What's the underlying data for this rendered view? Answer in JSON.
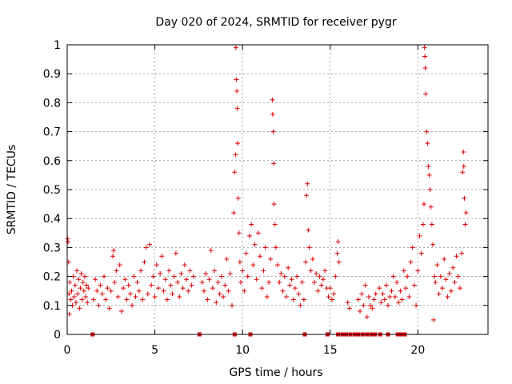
{
  "chart_data": {
    "type": "scatter",
    "title": "Day 020 of 2024, SRMTID for receiver pygr",
    "xlabel": "GPS time / hours",
    "ylabel": "SRMTID / TECUs",
    "xlim": [
      0,
      24
    ],
    "ylim": [
      0,
      1
    ],
    "x_ticks": [
      0,
      5,
      10,
      15,
      20
    ],
    "x_tick_labels": [
      "0",
      "5",
      "10",
      "15",
      "20"
    ],
    "y_ticks": [
      0,
      0.1,
      0.2,
      0.3,
      0.4,
      0.5,
      0.6,
      0.7,
      0.8,
      0.9,
      1
    ],
    "y_tick_labels": [
      "0",
      "0.1",
      "0.2",
      "0.3",
      "0.4",
      "0.5",
      "0.6",
      "0.7",
      "0.8",
      "0.9",
      "1"
    ],
    "grid": true,
    "marker": "+",
    "color": "#dd0000",
    "baseline_marker": "square",
    "series": [
      {
        "name": "SRMTID",
        "points": [
          [
            0.02,
            0.33
          ],
          [
            0.05,
            0.32
          ],
          [
            0.08,
            0.25
          ],
          [
            0.1,
            0.14
          ],
          [
            0.12,
            0.07
          ],
          [
            0.15,
            0.18
          ],
          [
            0.2,
            0.12
          ],
          [
            0.25,
            0.15
          ],
          [
            0.3,
            0.1
          ],
          [
            0.35,
            0.2
          ],
          [
            0.4,
            0.13
          ],
          [
            0.45,
            0.17
          ],
          [
            0.5,
            0.11
          ],
          [
            0.55,
            0.22
          ],
          [
            0.6,
            0.14
          ],
          [
            0.65,
            0.19
          ],
          [
            0.7,
            0.09
          ],
          [
            0.75,
            0.16
          ],
          [
            0.8,
            0.21
          ],
          [
            0.85,
            0.12
          ],
          [
            0.9,
            0.18
          ],
          [
            0.95,
            0.15
          ],
          [
            1.0,
            0.2
          ],
          [
            1.05,
            0.13
          ],
          [
            1.1,
            0.17
          ],
          [
            1.15,
            0.11
          ],
          [
            1.2,
            0.16
          ],
          [
            1.5,
            0.12
          ],
          [
            1.6,
            0.19
          ],
          [
            1.7,
            0.15
          ],
          [
            1.8,
            0.1
          ],
          [
            1.9,
            0.17
          ],
          [
            2.0,
            0.14
          ],
          [
            2.1,
            0.2
          ],
          [
            2.2,
            0.12
          ],
          [
            2.3,
            0.16
          ],
          [
            2.4,
            0.09
          ],
          [
            2.5,
            0.15
          ],
          [
            2.6,
            0.27
          ],
          [
            2.65,
            0.29
          ],
          [
            2.7,
            0.18
          ],
          [
            2.8,
            0.22
          ],
          [
            2.9,
            0.13
          ],
          [
            3.0,
            0.24
          ],
          [
            3.1,
            0.08
          ],
          [
            3.2,
            0.16
          ],
          [
            3.3,
            0.19
          ],
          [
            3.4,
            0.12
          ],
          [
            3.5,
            0.17
          ],
          [
            3.6,
            0.14
          ],
          [
            3.7,
            0.1
          ],
          [
            3.8,
            0.2
          ],
          [
            3.9,
            0.13
          ],
          [
            4.0,
            0.18
          ],
          [
            4.1,
            0.15
          ],
          [
            4.2,
            0.22
          ],
          [
            4.3,
            0.12
          ],
          [
            4.4,
            0.25
          ],
          [
            4.5,
            0.3
          ],
          [
            4.6,
            0.14
          ],
          [
            4.7,
            0.31
          ],
          [
            4.8,
            0.17
          ],
          [
            4.9,
            0.2
          ],
          [
            5.0,
            0.13
          ],
          [
            5.1,
            0.24
          ],
          [
            5.2,
            0.16
          ],
          [
            5.3,
            0.21
          ],
          [
            5.4,
            0.27
          ],
          [
            5.5,
            0.15
          ],
          [
            5.6,
            0.19
          ],
          [
            5.7,
            0.12
          ],
          [
            5.8,
            0.22
          ],
          [
            5.9,
            0.17
          ],
          [
            6.0,
            0.14
          ],
          [
            6.1,
            0.2
          ],
          [
            6.2,
            0.28
          ],
          [
            6.3,
            0.18
          ],
          [
            6.4,
            0.13
          ],
          [
            6.5,
            0.21
          ],
          [
            6.6,
            0.16
          ],
          [
            6.7,
            0.24
          ],
          [
            6.8,
            0.19
          ],
          [
            6.9,
            0.15
          ],
          [
            7.0,
            0.22
          ],
          [
            7.1,
            0.17
          ],
          [
            7.2,
            0.2
          ],
          [
            7.7,
            0.18
          ],
          [
            7.8,
            0.15
          ],
          [
            7.9,
            0.21
          ],
          [
            8.0,
            0.12
          ],
          [
            8.1,
            0.19
          ],
          [
            8.2,
            0.29
          ],
          [
            8.3,
            0.16
          ],
          [
            8.4,
            0.22
          ],
          [
            8.5,
            0.11
          ],
          [
            8.6,
            0.18
          ],
          [
            8.7,
            0.14
          ],
          [
            8.8,
            0.2
          ],
          [
            8.9,
            0.13
          ],
          [
            9.0,
            0.17
          ],
          [
            9.1,
            0.26
          ],
          [
            9.2,
            0.15
          ],
          [
            9.3,
            0.21
          ],
          [
            9.4,
            0.1
          ],
          [
            9.5,
            0.42
          ],
          [
            9.55,
            0.56
          ],
          [
            9.6,
            0.62
          ],
          [
            9.62,
            0.99
          ],
          [
            9.65,
            0.88
          ],
          [
            9.68,
            0.84
          ],
          [
            9.7,
            0.78
          ],
          [
            9.72,
            0.66
          ],
          [
            9.75,
            0.47
          ],
          [
            9.8,
            0.35
          ],
          [
            9.85,
            0.25
          ],
          [
            9.9,
            0.18
          ],
          [
            10.0,
            0.22
          ],
          [
            10.1,
            0.15
          ],
          [
            10.2,
            0.28
          ],
          [
            10.3,
            0.2
          ],
          [
            10.4,
            0.34
          ],
          [
            10.5,
            0.38
          ],
          [
            10.6,
            0.24
          ],
          [
            10.7,
            0.31
          ],
          [
            10.8,
            0.19
          ],
          [
            10.9,
            0.35
          ],
          [
            11.0,
            0.27
          ],
          [
            11.1,
            0.16
          ],
          [
            11.2,
            0.22
          ],
          [
            11.3,
            0.3
          ],
          [
            11.4,
            0.13
          ],
          [
            11.5,
            0.18
          ],
          [
            11.6,
            0.26
          ],
          [
            11.7,
            0.81
          ],
          [
            11.72,
            0.76
          ],
          [
            11.75,
            0.7
          ],
          [
            11.78,
            0.59
          ],
          [
            11.8,
            0.45
          ],
          [
            11.85,
            0.38
          ],
          [
            11.9,
            0.3
          ],
          [
            12.0,
            0.24
          ],
          [
            12.1,
            0.18
          ],
          [
            12.2,
            0.21
          ],
          [
            12.3,
            0.15
          ],
          [
            12.4,
            0.2
          ],
          [
            12.5,
            0.13
          ],
          [
            12.6,
            0.23
          ],
          [
            12.7,
            0.17
          ],
          [
            12.8,
            0.19
          ],
          [
            12.9,
            0.12
          ],
          [
            13.0,
            0.16
          ],
          [
            13.1,
            0.2
          ],
          [
            13.2,
            0.14
          ],
          [
            13.3,
            0.1
          ],
          [
            13.4,
            0.18
          ],
          [
            13.5,
            0.12
          ],
          [
            13.6,
            0.25
          ],
          [
            13.65,
            0.48
          ],
          [
            13.7,
            0.52
          ],
          [
            13.75,
            0.36
          ],
          [
            13.8,
            0.3
          ],
          [
            13.9,
            0.22
          ],
          [
            14.0,
            0.26
          ],
          [
            14.1,
            0.18
          ],
          [
            14.2,
            0.21
          ],
          [
            14.3,
            0.15
          ],
          [
            14.4,
            0.2
          ],
          [
            14.5,
            0.17
          ],
          [
            14.6,
            0.19
          ],
          [
            14.7,
            0.22
          ],
          [
            14.8,
            0.16
          ],
          [
            14.9,
            0.13
          ],
          [
            15.0,
            0.16
          ],
          [
            15.1,
            0.12
          ],
          [
            15.2,
            0.14
          ],
          [
            15.3,
            0.2
          ],
          [
            15.4,
            0.28
          ],
          [
            15.45,
            0.32
          ],
          [
            15.5,
            0.25
          ],
          [
            16.0,
            0.11
          ],
          [
            16.1,
            0.09
          ],
          [
            16.6,
            0.12
          ],
          [
            16.7,
            0.08
          ],
          [
            16.8,
            0.14
          ],
          [
            16.9,
            0.1
          ],
          [
            17.0,
            0.17
          ],
          [
            17.1,
            0.06
          ],
          [
            17.2,
            0.13
          ],
          [
            17.3,
            0.1
          ],
          [
            17.4,
            0.09
          ],
          [
            17.5,
            0.12
          ],
          [
            17.6,
            0.14
          ],
          [
            17.8,
            0.16
          ],
          [
            17.9,
            0.11
          ],
          [
            18.0,
            0.14
          ],
          [
            18.1,
            0.12
          ],
          [
            18.2,
            0.17
          ],
          [
            18.3,
            0.1
          ],
          [
            18.4,
            0.13
          ],
          [
            18.5,
            0.15
          ],
          [
            18.6,
            0.2
          ],
          [
            18.7,
            0.13
          ],
          [
            18.8,
            0.18
          ],
          [
            18.9,
            0.11
          ],
          [
            19.0,
            0.15
          ],
          [
            19.1,
            0.12
          ],
          [
            19.2,
            0.22
          ],
          [
            19.3,
            0.16
          ],
          [
            19.4,
            0.2
          ],
          [
            19.5,
            0.13
          ],
          [
            19.6,
            0.25
          ],
          [
            19.7,
            0.3
          ],
          [
            19.8,
            0.17
          ],
          [
            19.9,
            0.1
          ],
          [
            20.0,
            0.22
          ],
          [
            20.1,
            0.34
          ],
          [
            20.2,
            0.28
          ],
          [
            20.3,
            0.38
          ],
          [
            20.35,
            0.45
          ],
          [
            20.38,
            0.99
          ],
          [
            20.4,
            0.96
          ],
          [
            20.42,
            0.92
          ],
          [
            20.45,
            0.83
          ],
          [
            20.5,
            0.7
          ],
          [
            20.55,
            0.66
          ],
          [
            20.6,
            0.58
          ],
          [
            20.65,
            0.55
          ],
          [
            20.7,
            0.5
          ],
          [
            20.75,
            0.44
          ],
          [
            20.8,
            0.38
          ],
          [
            20.85,
            0.31
          ],
          [
            20.9,
            0.05
          ],
          [
            20.95,
            0.2
          ],
          [
            21.0,
            0.18
          ],
          [
            21.1,
            0.24
          ],
          [
            21.2,
            0.14
          ],
          [
            21.3,
            0.2
          ],
          [
            21.4,
            0.16
          ],
          [
            21.5,
            0.26
          ],
          [
            21.6,
            0.19
          ],
          [
            21.7,
            0.13
          ],
          [
            21.8,
            0.21
          ],
          [
            21.9,
            0.15
          ],
          [
            22.0,
            0.23
          ],
          [
            22.1,
            0.18
          ],
          [
            22.2,
            0.27
          ],
          [
            22.3,
            0.2
          ],
          [
            22.4,
            0.16
          ],
          [
            22.5,
            0.28
          ],
          [
            22.55,
            0.56
          ],
          [
            22.6,
            0.63
          ],
          [
            22.62,
            0.58
          ],
          [
            22.65,
            0.47
          ],
          [
            22.7,
            0.38
          ],
          [
            22.75,
            0.42
          ]
        ]
      }
    ],
    "zero_markers_x": [
      1.45,
      7.55,
      9.55,
      10.45,
      13.55,
      14.85,
      15.45,
      15.7,
      15.9,
      16.15,
      16.4,
      16.6,
      16.85,
      17.1,
      17.35,
      17.55,
      17.85,
      18.3,
      18.85,
      19.05,
      19.25
    ]
  }
}
